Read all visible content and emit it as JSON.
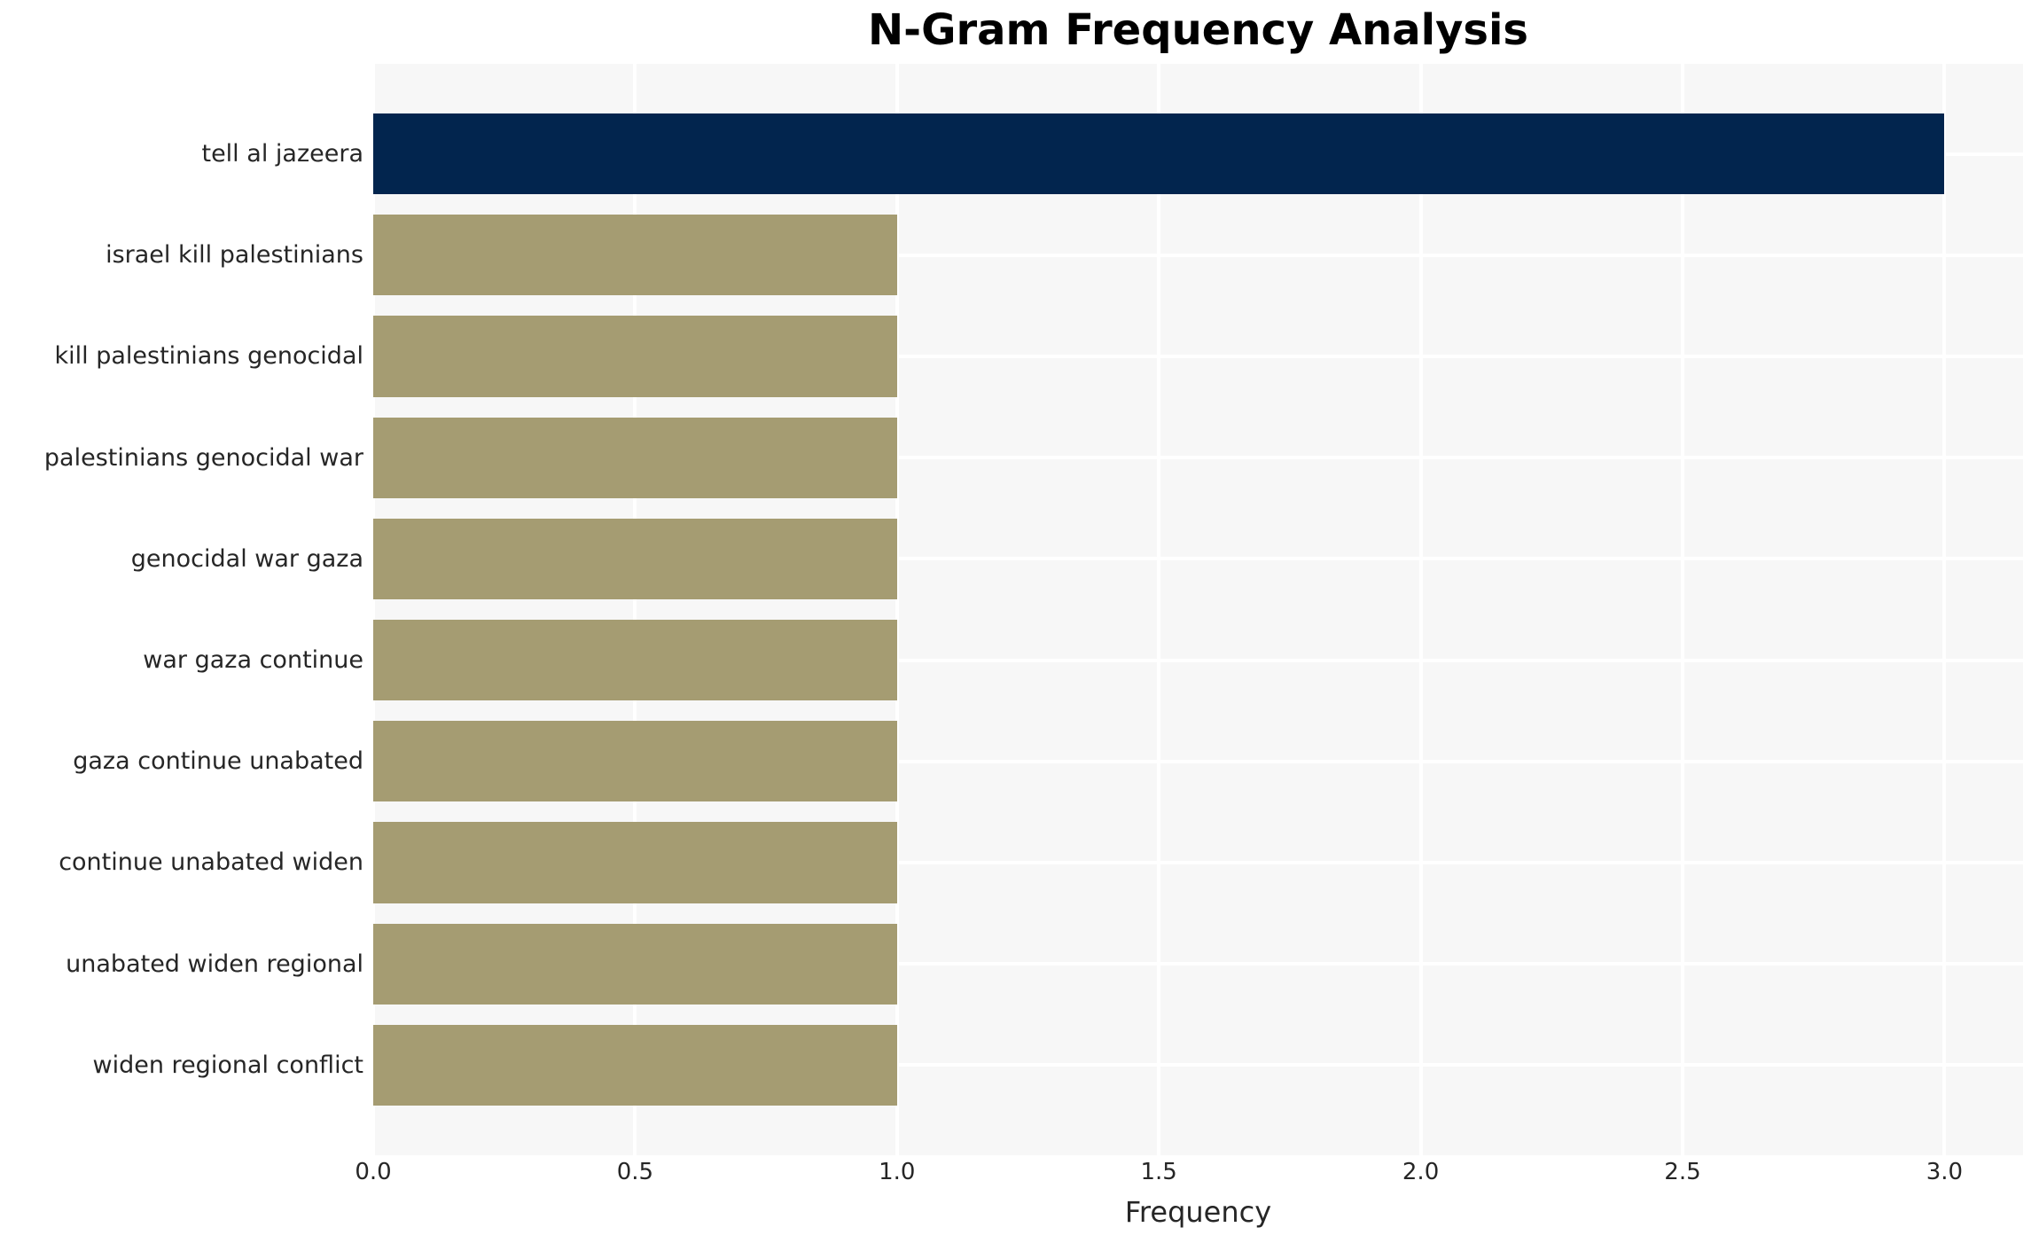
{
  "chart_data": {
    "type": "bar",
    "orientation": "horizontal",
    "title": "N-Gram Frequency Analysis",
    "xlabel": "Frequency",
    "ylabel": "",
    "categories": [
      "tell al jazeera",
      "israel kill palestinians",
      "kill palestinians genocidal",
      "palestinians genocidal war",
      "genocidal war gaza",
      "war gaza continue",
      "gaza continue unabated",
      "continue unabated widen",
      "unabated widen regional",
      "widen regional conflict"
    ],
    "values": [
      3,
      1,
      1,
      1,
      1,
      1,
      1,
      1,
      1,
      1
    ],
    "bar_colors": [
      "#02254E",
      "#A59C72",
      "#A59C72",
      "#A59C72",
      "#A59C72",
      "#A59C72",
      "#A59C72",
      "#A59C72",
      "#A59C72",
      "#A59C72"
    ],
    "x_tick_values": [
      0,
      0.5,
      1,
      1.5,
      2,
      2.5,
      3
    ],
    "x_tick_labels": [
      "0.0",
      "0.5",
      "1.0",
      "1.5",
      "2.0",
      "2.5",
      "3.0"
    ],
    "xlim": [
      0,
      3.15
    ],
    "grid": true,
    "legend": false,
    "colors": {
      "plot_bg": "#F7F7F7",
      "grid": "#FFFFFF",
      "text": "#262626",
      "title": "#000000",
      "figure_bg": "#FFFFFF"
    }
  }
}
